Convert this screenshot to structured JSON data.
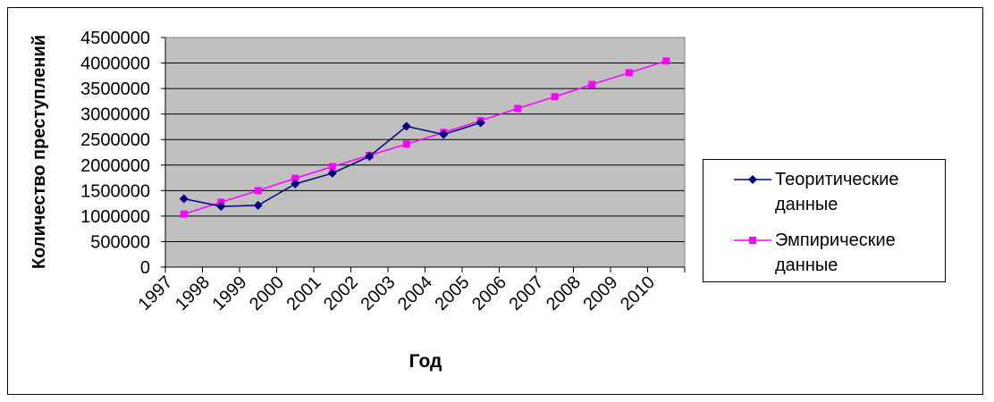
{
  "chart_data": {
    "type": "line",
    "categories": [
      "1997",
      "1998",
      "1999",
      "2000",
      "2001",
      "2002",
      "2003",
      "2004",
      "2005",
      "2006",
      "2007",
      "2008",
      "2009",
      "2010"
    ],
    "ylabel": "Количество преступлений",
    "xlabel": "Год",
    "ylim": [
      0,
      4500000
    ],
    "yticks": [
      "0",
      "500000",
      "1000000",
      "1500000",
      "2000000",
      "2500000",
      "3000000",
      "3500000",
      "4000000",
      "4500000"
    ],
    "grid": true,
    "plot_background": "#c0c0c0",
    "legend_position": "right",
    "series": [
      {
        "name": "Теоритические данные",
        "color": "#000080",
        "marker": "diamond",
        "values": [
          1340000,
          1190000,
          1210000,
          1630000,
          1840000,
          2170000,
          2760000,
          2600000,
          2830000,
          null,
          null,
          null,
          null,
          null
        ]
      },
      {
        "name": "Эмпирические данные",
        "color": "#ff00ff",
        "marker": "square",
        "values": [
          1040000,
          1270000,
          1500000,
          1740000,
          1970000,
          2190000,
          2410000,
          2640000,
          2870000,
          3110000,
          3340000,
          3580000,
          3810000,
          4040000
        ]
      }
    ]
  },
  "legend": {
    "items": [
      {
        "label": "Теоритические\nданные"
      },
      {
        "label": "Эмпирические\nданные"
      }
    ]
  }
}
